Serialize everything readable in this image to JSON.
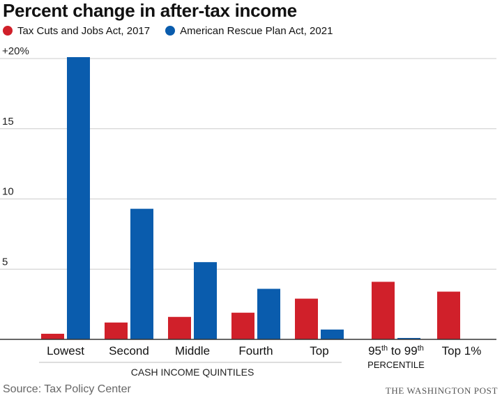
{
  "title": "Percent change in after-tax income",
  "legend": [
    {
      "label": "Tax Cuts and Jobs Act, 2017",
      "color": "#d0202a"
    },
    {
      "label": "American Rescue Plan Act, 2021",
      "color": "#0a5cad"
    }
  ],
  "chart_data": {
    "type": "bar",
    "title": "Percent change in after-tax income",
    "categories": [
      "Lowest",
      "Second",
      "Middle",
      "Fourth",
      "Top",
      "95th to 99th percentile",
      "Top 1%"
    ],
    "category_labels": [
      {
        "parts": [
          {
            "text": "Lowest"
          }
        ]
      },
      {
        "parts": [
          {
            "text": "Second"
          }
        ]
      },
      {
        "parts": [
          {
            "text": "Middle"
          }
        ]
      },
      {
        "parts": [
          {
            "text": "Fourth"
          }
        ]
      },
      {
        "parts": [
          {
            "text": "Top"
          }
        ]
      },
      {
        "parts": [
          {
            "text": "95"
          },
          {
            "text": "th",
            "sup": true
          },
          {
            "text": " to 99"
          },
          {
            "text": "th",
            "sup": true
          }
        ],
        "sub": "PERCENTILE"
      },
      {
        "parts": [
          {
            "text": "Top 1%"
          }
        ]
      }
    ],
    "series": [
      {
        "name": "Tax Cuts and Jobs Act, 2017",
        "color": "#d0202a",
        "values": [
          0.4,
          1.2,
          1.6,
          1.9,
          2.9,
          4.1,
          3.4
        ]
      },
      {
        "name": "American Rescue Plan Act, 2021",
        "color": "#0a5cad",
        "values": [
          20.1,
          9.3,
          5.5,
          3.6,
          0.7,
          0.1,
          0
        ]
      }
    ],
    "y_ticks": [
      {
        "value": 20,
        "label": "+20%"
      },
      {
        "value": 15,
        "label": "15"
      },
      {
        "value": 10,
        "label": "10"
      },
      {
        "value": 5,
        "label": "5"
      }
    ],
    "ylim": [
      0,
      20
    ],
    "group_label": "CASH INCOME QUINTILES",
    "grid": true
  },
  "source": "Source: Tax Policy Center",
  "credit": "THE WASHINGTON POST"
}
